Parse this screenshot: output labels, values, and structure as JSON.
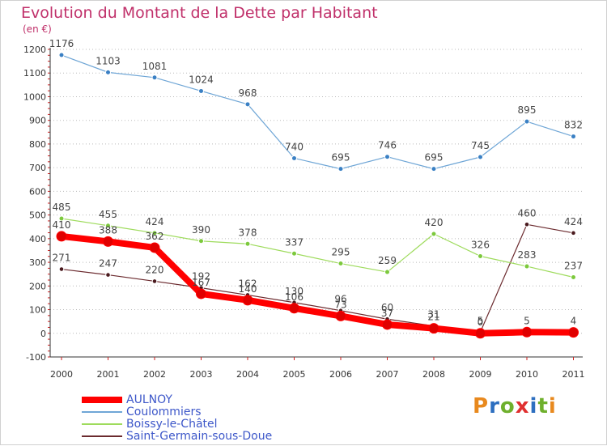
{
  "title": "Evolution du Montant de la Dette par Habitant",
  "unit_label": "(en €)",
  "logo_text": "Proxiti",
  "chart_data": {
    "type": "line",
    "title": "Evolution du Montant de la Dette par Habitant",
    "ylabel": "(en €)",
    "ylim": [
      -100,
      1200
    ],
    "yticks": [
      -100,
      0,
      100,
      200,
      300,
      400,
      500,
      600,
      700,
      800,
      900,
      1000,
      1100,
      1200
    ],
    "x": [
      "2000",
      "2001",
      "2002",
      "2003",
      "2004",
      "2005",
      "2006",
      "2007",
      "2008",
      "2009",
      "2010",
      "2011"
    ],
    "legend_position": "bottom-left",
    "series": [
      {
        "name": "Saint-Germain-sous-Doue",
        "color": "#6b2a2e",
        "dot": "#4a1a1e",
        "width": 1.2,
        "marker": 2.8,
        "values": [
          271,
          247,
          220,
          192,
          162,
          130,
          96,
          60,
          31,
          5,
          460,
          424
        ]
      },
      {
        "name": "Coulommiers",
        "color": "#6fa6d6",
        "dot": "#3a80c4",
        "width": 1.2,
        "marker": 3,
        "values": [
          1176,
          1103,
          1081,
          1024,
          968,
          740,
          695,
          746,
          695,
          745,
          895,
          832
        ]
      },
      {
        "name": "Boissy-le-Châtel",
        "color": "#9edb5c",
        "dot": "#7cc93c",
        "width": 1.2,
        "marker": 3,
        "values": [
          485,
          455,
          424,
          390,
          378,
          337,
          295,
          259,
          420,
          326,
          283,
          237
        ]
      },
      {
        "name": "AULNOY",
        "color": "#ff0000",
        "dot": "#e00000",
        "width": 8,
        "marker": 6,
        "values": [
          410,
          388,
          362,
          167,
          140,
          106,
          73,
          37,
          21,
          0,
          5,
          4
        ]
      }
    ],
    "legend_order": [
      "AULNOY",
      "Coulommiers",
      "Boissy-le-Châtel",
      "Saint-Germain-sous-Doue"
    ]
  }
}
